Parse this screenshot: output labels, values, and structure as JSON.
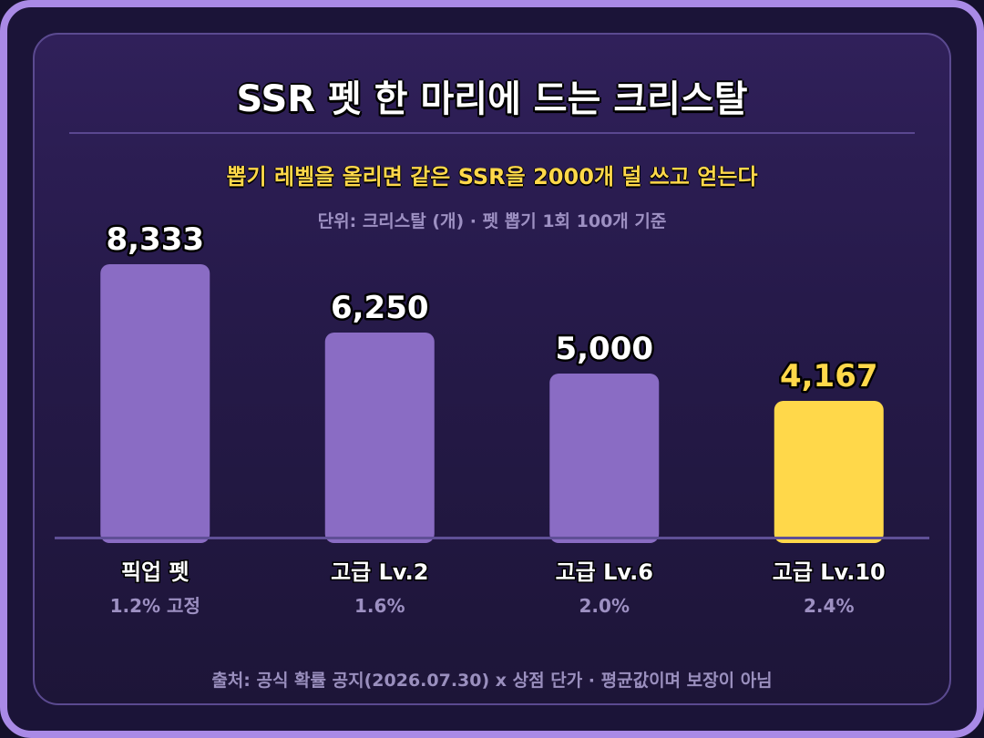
{
  "chart_data": {
    "type": "bar",
    "title": "SSR 펫 한 마리에 드는 크리스탈",
    "subtitle": "뽑기 레벨을 올리면 같은 SSR을 2000개 덜 쓰고 얻는다",
    "unit_note": "단위: 크리스탈 (개) · 펫 뽑기 1회 100개 기준",
    "categories": [
      "픽업 펫",
      "고급 Lv.2",
      "고급 Lv.6",
      "고급 Lv.10"
    ],
    "category_sublabels": [
      "1.2% 고정",
      "1.6%",
      "2.0%",
      "2.4%"
    ],
    "values": [
      8333,
      6250,
      5000,
      4167
    ],
    "value_labels": [
      "8,333",
      "6,250",
      "5,000",
      "4,167"
    ],
    "highlight_index": 3,
    "ylim": [
      0,
      8333
    ],
    "grid": false,
    "colors": {
      "bar": "#8a6cc4",
      "highlight": "#ffd84a",
      "value_label": "#ffffff",
      "highlight_label": "#ffd84a",
      "category_label": "#ffffff",
      "sublabel": "#9d90c2",
      "baseline": "#5f4f96"
    },
    "source": "출처: 공식 확률 공지(2026.07.30) x 상점 단가 · 평균값이며 보장이 아님"
  }
}
